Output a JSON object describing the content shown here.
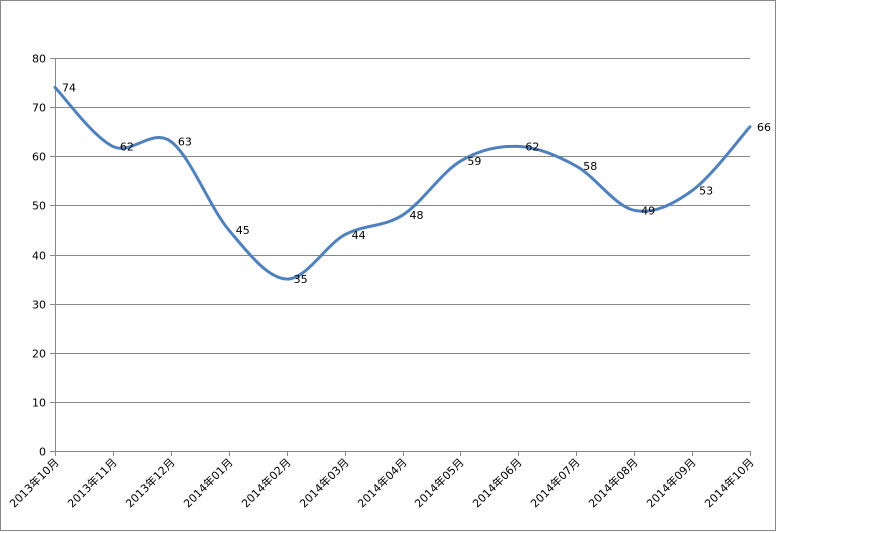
{
  "chart_data": {
    "type": "line",
    "title": "",
    "xlabel": "",
    "ylabel": "",
    "categories": [
      "2013年10月",
      "2013年11月",
      "2013年12月",
      "2014年01月",
      "2014年02月",
      "2014年03月",
      "2014年04月",
      "2014年05月",
      "2014年06月",
      "2014年07月",
      "2014年08月",
      "2014年09月",
      "2014年10月"
    ],
    "series": [
      {
        "values": [
          74,
          62,
          63,
          45,
          35,
          44,
          48,
          59,
          62,
          58,
          49,
          53,
          66
        ],
        "color": "#4F81BD",
        "smooth": true
      }
    ],
    "ylim": [
      0,
      80
    ],
    "yticks": [
      0,
      10,
      20,
      30,
      40,
      50,
      60,
      70,
      80
    ],
    "grid": true,
    "legend": "none",
    "data_labels": true
  }
}
